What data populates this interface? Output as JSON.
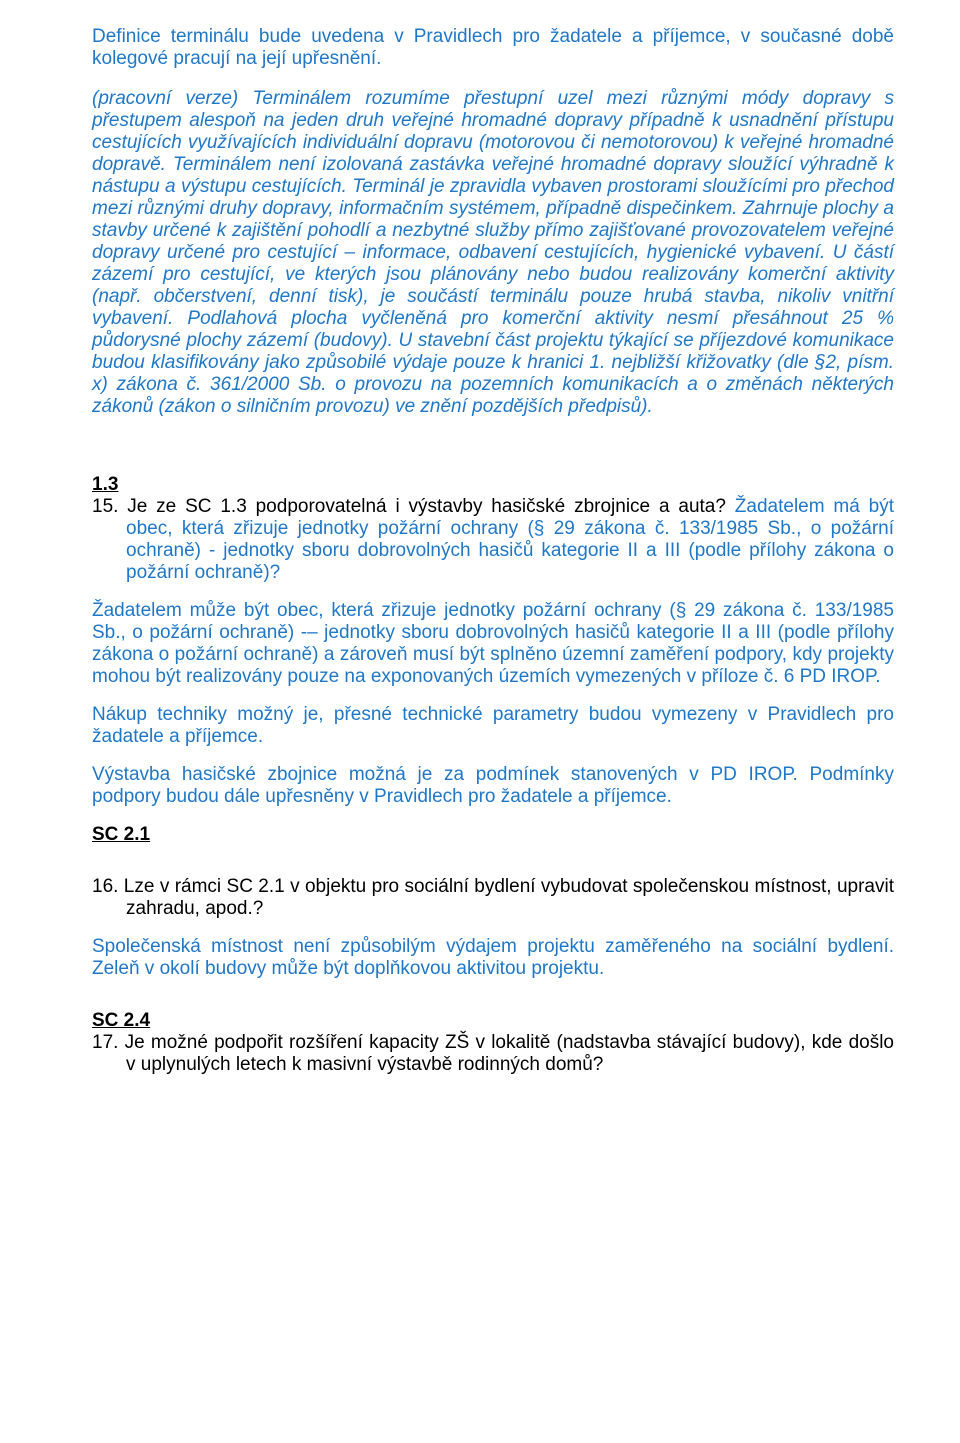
{
  "p1": "Definice terminálu bude uvedena v Pravidlech pro žadatele a příjemce, v současné době kolegové pracují na její upřesnění.",
  "p2": "(pracovní verze) Terminálem rozumíme přestupní uzel mezi různými módy dopravy s přestupem alespoň na jeden druh veřejné hromadné dopravy případně k usnadnění přístupu cestujících využívajících individuální dopravu (motorovou či nemotorovou) k veřejné hromadné dopravě. Terminálem není izolovaná zastávka veřejné hromadné dopravy sloužící výhradně k nástupu a výstupu cestujících. Terminál je zpravidla vybaven prostorami sloužícími pro přechod mezi různými druhy dopravy, informačním systémem, případně dispečinkem. Zahrnuje plochy a stavby určené k zajištění pohodlí a nezbytné služby přímo zajišťované provozovatelem veřejné dopravy určené pro cestující – informace, odbavení cestujících, hygienické vybavení. U částí zázemí pro cestující, ve kterých jsou plánovány nebo budou realizovány komerční aktivity (např. občerstvení, denní tisk), je součástí terminálu pouze hrubá stavba, nikoliv vnitřní vybavení. Podlahová plocha vyčleněná pro komerční aktivity nesmí přesáhnout 25 % půdorysné plochy zázemí (budovy). U stavební část projektu týkající se příjezdové komunikace budou klasifikovány jako způsobilé výdaje pouze k hranici 1. nejbližší křižovatky (dle §2, písm. x) zákona č. 361/2000 Sb. o provozu na pozemních komunikacích a o změnách některých zákonů (zákon o silničním provozu) ve znění pozdějších předpisů).",
  "h13": "1.3",
  "q15a": "15. Je ze SC 1.3 podporovatelná i výstavby hasičské zbrojnice a auta?",
  "q15b": " Žadatelem má být obec, která zřizuje jednotky požární ochrany (§ 29 zákona č. 133/1985 Sb., o požární ochraně) - jednotky sboru dobrovolných hasičů kategorie II a III (podle přílohy zákona o požární ochraně)?",
  "a15_1": "Žadatelem může být obec, která zřizuje jednotky požární ochrany (§ 29 zákona č. 133/1985 Sb., o požární ochraně) -– jednotky sboru dobrovolných hasičů kategorie II a III (podle přílohy zákona o požární ochraně) a zároveň musí být splněno územní zaměření podpory, kdy projekty mohou být realizovány pouze na exponovaných územích vymezených v příloze č. 6 PD IROP.",
  "a15_2": "Nákup techniky možný je, přesné technické parametry budou vymezeny v Pravidlech pro žadatele a příjemce.",
  "a15_3": "Výstavba hasičské zbojnice možná je za podmínek stanovených v PD IROP. Podmínky podpory budou dále upřesněny v Pravidlech pro žadatele a příjemce.",
  "h21": "SC 2.1",
  "q16": "16. Lze v rámci SC 2.1 v objektu pro sociální bydlení vybudovat společenskou místnost, upravit zahradu, apod.?",
  "a16a": "Společenská místnost není způsobilým výdajem projektu zaměřeného na sociální bydlení.",
  "a16b": " Zeleň v okolí budovy může být doplňkovou aktivitou projektu.",
  "h24": "SC 2.4",
  "q17": "17. Je možné podpořit rozšíření kapacity ZŠ v lokalitě (nadstavba stávající budovy), kde došlo v uplynulých letech k masivní výstavbě rodinných domů?"
}
